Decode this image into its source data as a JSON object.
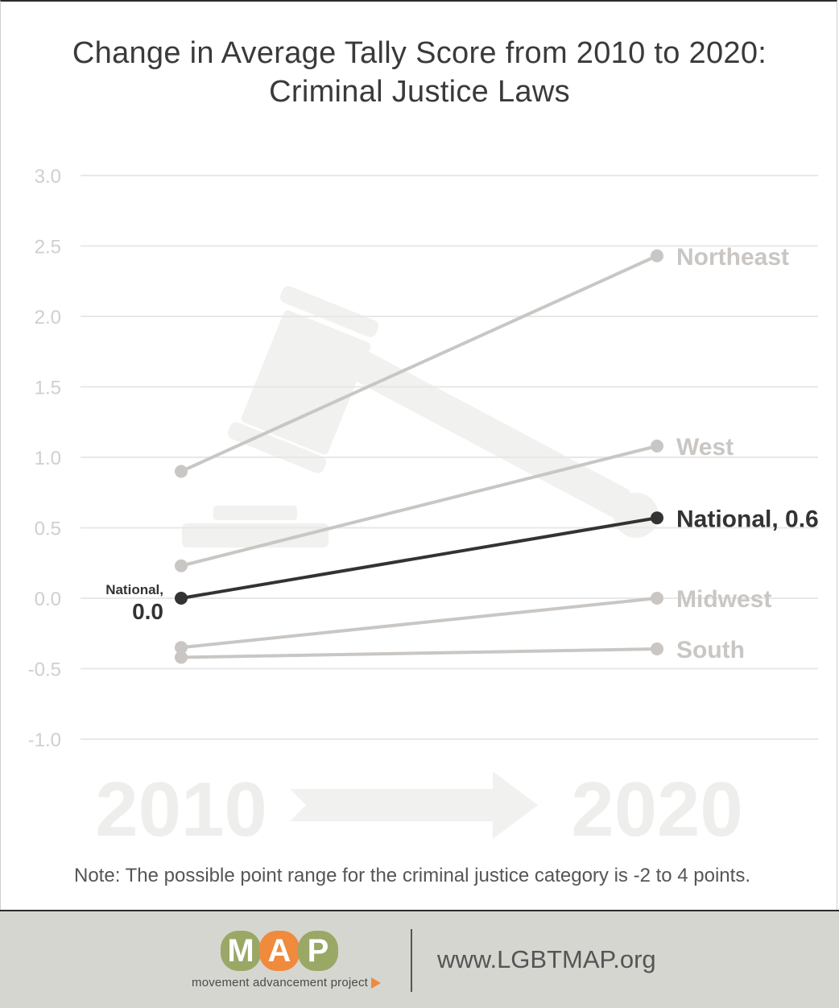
{
  "title": {
    "line1": "Change in Average Tally Score from 2010 to 2020:",
    "line2": "Criminal Justice Laws"
  },
  "chart_data": {
    "type": "line",
    "title": "Change in Average Tally Score from 2010 to 2020: Criminal Justice Laws",
    "x": [
      "2010",
      "2020"
    ],
    "ylim": [
      -1.0,
      3.0
    ],
    "yticks": [
      "3.0",
      "2.5",
      "2.0",
      "1.5",
      "1.0",
      "0.5",
      "0.0",
      "-0.5",
      "-1.0"
    ],
    "grid": true,
    "series": [
      {
        "name": "Northeast",
        "values": [
          0.9,
          2.43
        ],
        "color": "#c9c6c3",
        "label_end": "Northeast"
      },
      {
        "name": "West",
        "values": [
          0.23,
          1.08
        ],
        "color": "#c9c6c3",
        "label_end": "West"
      },
      {
        "name": "National",
        "values": [
          0.0,
          0.57
        ],
        "color": "#333333",
        "label_end": "National, 0.6",
        "label_start_line1": "National,",
        "label_start_line2": "0.0"
      },
      {
        "name": "Midwest",
        "values": [
          -0.35,
          0.0
        ],
        "color": "#c9c6c3",
        "label_end": "Midwest"
      },
      {
        "name": "South",
        "values": [
          -0.42,
          -0.36
        ],
        "color": "#c9c6c3",
        "label_end": "South"
      }
    ],
    "background_years": [
      "2010",
      "2020"
    ]
  },
  "note": "Note: The possible point range for the criminal justice category is -2 to 4 points.",
  "footer": {
    "logo_letters": [
      "M",
      "A",
      "P"
    ],
    "logo_colors": [
      "#9aa866",
      "#f08a3c",
      "#9aa866"
    ],
    "logo_subtitle": "movement advancement project",
    "website": "www.LGBTMAP.org"
  }
}
